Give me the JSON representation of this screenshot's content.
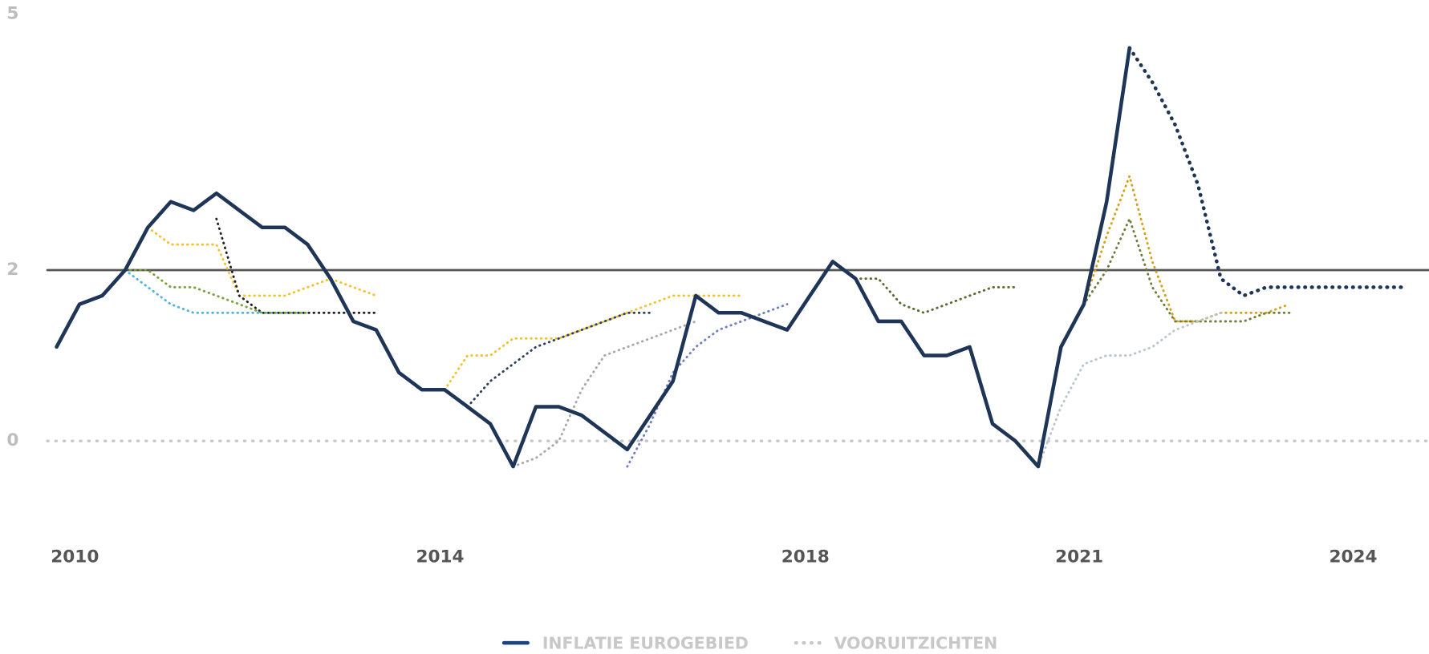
{
  "chart_data": {
    "type": "line",
    "xlim": [
      2009.18,
      2024.83
    ],
    "ylim": [
      -1,
      5
    ],
    "xticks": [
      2010,
      2014,
      2018,
      2021,
      2024
    ],
    "yticks": [
      0,
      2,
      5
    ],
    "reference_lines": [
      {
        "value": 0,
        "style": "dotted",
        "color": "#c8c8c8"
      },
      {
        "value": 2,
        "style": "solid",
        "color": "#555555"
      }
    ],
    "legend": [
      {
        "label": "INFLATIE EUROGEBIED",
        "color": "#1a4480",
        "style": "solid"
      },
      {
        "label": "VOORUITZICHTEN",
        "color": "#c8c8c8",
        "style": "dotted"
      }
    ],
    "series": [
      {
        "color": "#1f3557",
        "style": "solid",
        "width": 4,
        "x": [
          2009.8,
          2010.05,
          2010.3,
          2010.55,
          2010.8,
          2011.05,
          2011.3,
          2011.55,
          2011.8,
          2012.05,
          2012.3,
          2012.55,
          2012.8,
          2013.05,
          2013.3,
          2013.55,
          2013.8,
          2014.05,
          2014.3,
          2014.55,
          2014.8,
          2015.05,
          2015.3,
          2015.55,
          2015.8,
          2016.05,
          2016.3,
          2016.55,
          2016.8,
          2017.05,
          2017.3,
          2017.55,
          2017.8,
          2018.05,
          2018.3,
          2018.55,
          2018.8,
          2019.05,
          2019.3,
          2019.55,
          2019.8,
          2020.05,
          2020.3,
          2020.55,
          2020.8,
          2021.05,
          2021.3,
          2021.55
        ],
        "values": [
          1.1,
          1.6,
          1.7,
          2.0,
          2.5,
          2.8,
          2.7,
          2.9,
          2.7,
          2.5,
          2.5,
          2.3,
          1.9,
          1.4,
          1.3,
          0.8,
          0.6,
          0.6,
          0.4,
          0.2,
          -0.3,
          0.4,
          0.4,
          0.3,
          0.1,
          -0.1,
          0.3,
          0.7,
          1.7,
          1.5,
          1.5,
          1.4,
          1.3,
          1.7,
          2.1,
          1.9,
          1.4,
          1.4,
          1.0,
          1.0,
          1.1,
          0.2,
          0.0,
          -0.3,
          1.1,
          1.6,
          2.8,
          4.6
        ]
      },
      {
        "color": "#1f3557",
        "style": "dotted",
        "width": 4,
        "x": [
          2021.55,
          2021.8,
          2022.05,
          2022.3,
          2022.55,
          2022.8,
          2023.05,
          2023.3,
          2023.55,
          2023.8,
          2024.05,
          2024.3,
          2024.55
        ],
        "values": [
          4.6,
          4.2,
          3.7,
          3.0,
          1.9,
          1.7,
          1.8,
          1.8,
          1.8,
          1.8,
          1.8,
          1.8,
          1.8
        ]
      },
      {
        "color": "#d4a017",
        "style": "dotted",
        "x": [
          2021.05,
          2021.3,
          2021.55,
          2021.8,
          2022.05,
          2022.3,
          2022.55,
          2022.8,
          2023.05,
          2023.3
        ],
        "values": [
          1.6,
          2.4,
          3.1,
          2.1,
          1.4,
          1.4,
          1.5,
          1.5,
          1.5,
          1.6
        ]
      },
      {
        "color": "#6b7d3a",
        "style": "dotted",
        "x": [
          2021.05,
          2021.3,
          2021.55,
          2021.8,
          2022.05,
          2022.3,
          2022.55,
          2022.8,
          2023.05,
          2023.3
        ],
        "values": [
          1.6,
          2.0,
          2.6,
          1.8,
          1.4,
          1.4,
          1.4,
          1.4,
          1.5,
          1.5
        ]
      },
      {
        "color": "#4fb3e0",
        "style": "dotted",
        "x": [
          2010.55,
          2010.8,
          2011.05,
          2011.3,
          2011.55,
          2011.8,
          2012.05,
          2012.3,
          2012.55
        ],
        "values": [
          2.0,
          1.8,
          1.6,
          1.5,
          1.5,
          1.5,
          1.5,
          1.5,
          1.5
        ]
      },
      {
        "color": "#f2c230",
        "style": "dotted",
        "x": [
          2010.8,
          2011.05,
          2011.3,
          2011.55,
          2011.8,
          2012.05,
          2012.3,
          2012.55,
          2012.8,
          2013.05,
          2013.3
        ],
        "values": [
          2.5,
          2.3,
          2.3,
          2.3,
          1.7,
          1.7,
          1.7,
          1.8,
          1.9,
          1.8,
          1.7
        ]
      },
      {
        "color": "#222222",
        "style": "dotted",
        "x": [
          2011.55,
          2011.8,
          2012.05,
          2012.3,
          2012.55,
          2012.8,
          2013.05,
          2013.3
        ],
        "values": [
          2.6,
          1.7,
          1.5,
          1.5,
          1.5,
          1.5,
          1.5,
          1.5
        ]
      },
      {
        "color": "#7aa23a",
        "style": "dotted",
        "x": [
          2010.55,
          2010.8,
          2011.05,
          2011.3,
          2011.55,
          2011.8,
          2012.05,
          2012.3,
          2012.55
        ],
        "values": [
          2.0,
          2.0,
          1.8,
          1.8,
          1.7,
          1.6,
          1.5,
          1.5,
          1.5
        ]
      },
      {
        "color": "#f2c230",
        "style": "dotted",
        "x": [
          2014.05,
          2014.3,
          2014.55,
          2014.8,
          2015.05,
          2015.3,
          2015.55,
          2015.8,
          2016.05,
          2016.3,
          2016.55,
          2016.8,
          2017.05,
          2017.3
        ],
        "values": [
          0.6,
          1.0,
          1.0,
          1.2,
          1.2,
          1.2,
          1.3,
          1.4,
          1.5,
          1.6,
          1.7,
          1.7,
          1.7,
          1.7
        ]
      },
      {
        "color": "#2c3e60",
        "style": "dotted",
        "x": [
          2014.3,
          2014.55,
          2014.8,
          2015.05,
          2015.3,
          2015.55,
          2015.8,
          2016.05,
          2016.3
        ],
        "values": [
          0.4,
          0.7,
          0.9,
          1.1,
          1.2,
          1.3,
          1.4,
          1.5,
          1.5
        ]
      },
      {
        "color": "#a8a8a8",
        "style": "dotted",
        "x": [
          2014.8,
          2015.05,
          2015.3,
          2015.55,
          2015.8,
          2016.05,
          2016.3,
          2016.55,
          2016.8
        ],
        "values": [
          -0.3,
          -0.2,
          0.0,
          0.6,
          1.0,
          1.1,
          1.2,
          1.3,
          1.4
        ]
      },
      {
        "color": "#6f7fc0",
        "style": "dotted",
        "x": [
          2016.05,
          2016.3,
          2016.55,
          2016.8,
          2017.05,
          2017.3,
          2017.55,
          2017.8
        ],
        "values": [
          -0.3,
          0.2,
          0.8,
          1.1,
          1.3,
          1.4,
          1.5,
          1.6
        ]
      },
      {
        "color": "#556b2f",
        "style": "dotted",
        "x": [
          2018.55,
          2018.8,
          2019.05,
          2019.3,
          2019.55,
          2019.8,
          2020.05,
          2020.3
        ],
        "values": [
          1.9,
          1.9,
          1.6,
          1.5,
          1.6,
          1.7,
          1.8,
          1.8
        ]
      },
      {
        "color": "#b8c4d0",
        "style": "dotted",
        "x": [
          2020.55,
          2020.8,
          2021.05,
          2021.3,
          2021.55,
          2021.8,
          2022.05,
          2022.3,
          2022.55
        ],
        "values": [
          -0.3,
          0.4,
          0.9,
          1.0,
          1.0,
          1.1,
          1.3,
          1.4,
          1.5
        ]
      }
    ]
  }
}
